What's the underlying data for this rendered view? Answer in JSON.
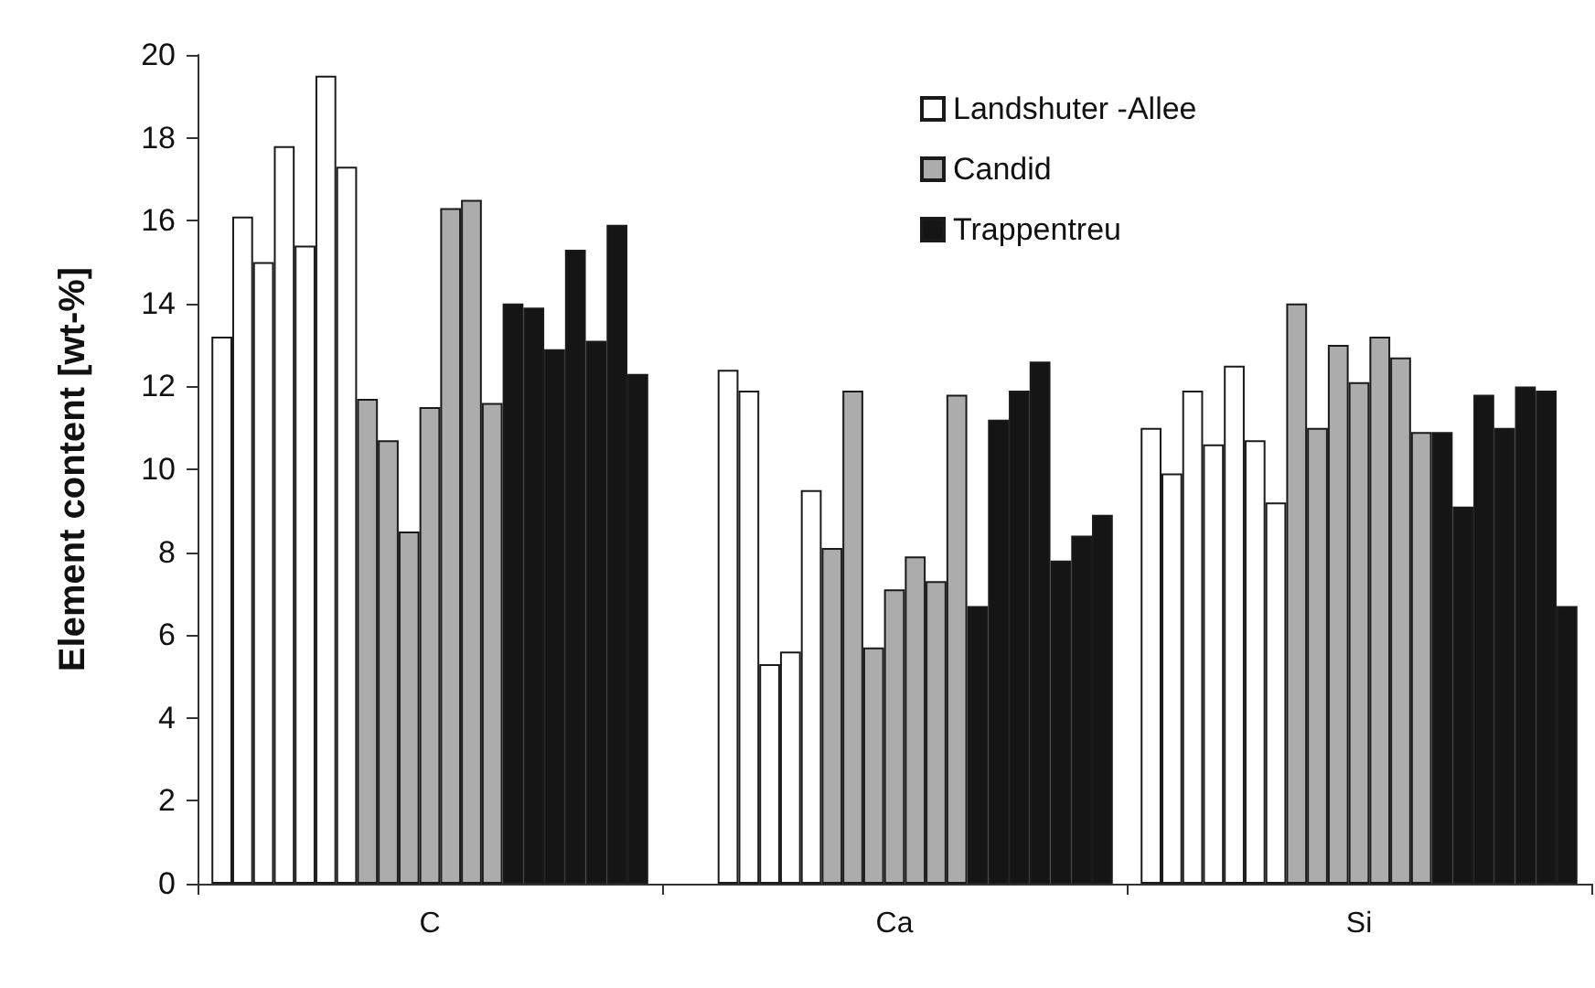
{
  "chart_data": {
    "type": "bar",
    "ylabel": "Element content [wt-%]",
    "categories": [
      "C",
      "Ca",
      "Si"
    ],
    "ylim": [
      0,
      20
    ],
    "yticks": [
      0,
      2,
      4,
      6,
      8,
      10,
      12,
      14,
      16,
      18,
      20
    ],
    "grid": false,
    "legend": "top right",
    "series": [
      {
        "name": "Landshuter -Allee",
        "color": "#ffffff",
        "values": [
          13.2,
          null,
          11.0
        ]
      },
      {
        "color": "#ffffff",
        "values": [
          16.1,
          null,
          9.9
        ]
      },
      {
        "color": "#ffffff",
        "values": [
          15.0,
          12.4,
          11.9
        ]
      },
      {
        "color": "#ffffff",
        "values": [
          17.8,
          11.9,
          10.6
        ]
      },
      {
        "color": "#ffffff",
        "values": [
          15.4,
          5.3,
          12.5
        ]
      },
      {
        "color": "#ffffff",
        "values": [
          19.5,
          5.6,
          10.7
        ]
      },
      {
        "color": "#ffffff",
        "values": [
          17.3,
          9.5,
          9.2
        ]
      },
      {
        "name": "Candid",
        "color": "#acacac",
        "values": [
          11.7,
          8.1,
          14.0
        ]
      },
      {
        "color": "#acacac",
        "values": [
          10.7,
          11.9,
          11.0
        ]
      },
      {
        "color": "#acacac",
        "values": [
          8.5,
          5.7,
          13.0
        ]
      },
      {
        "color": "#acacac",
        "values": [
          11.5,
          7.1,
          12.1
        ]
      },
      {
        "color": "#acacac",
        "values": [
          16.3,
          7.9,
          13.2
        ]
      },
      {
        "color": "#acacac",
        "values": [
          16.5,
          7.3,
          12.7
        ]
      },
      {
        "color": "#acacac",
        "values": [
          11.6,
          11.8,
          10.9
        ]
      },
      {
        "name": "Trappentreu",
        "color": "#151515",
        "values": [
          14.0,
          6.7,
          10.9
        ]
      },
      {
        "color": "#151515",
        "values": [
          13.9,
          11.2,
          9.1
        ]
      },
      {
        "color": "#151515",
        "values": [
          12.9,
          11.9,
          11.8
        ]
      },
      {
        "color": "#151515",
        "values": [
          15.3,
          12.6,
          11.0
        ]
      },
      {
        "color": "#151515",
        "values": [
          13.1,
          7.8,
          12.0
        ]
      },
      {
        "color": "#151515",
        "values": [
          15.9,
          8.4,
          11.9
        ]
      },
      {
        "color": "#151515",
        "values": [
          12.3,
          8.9,
          6.7
        ]
      }
    ]
  }
}
